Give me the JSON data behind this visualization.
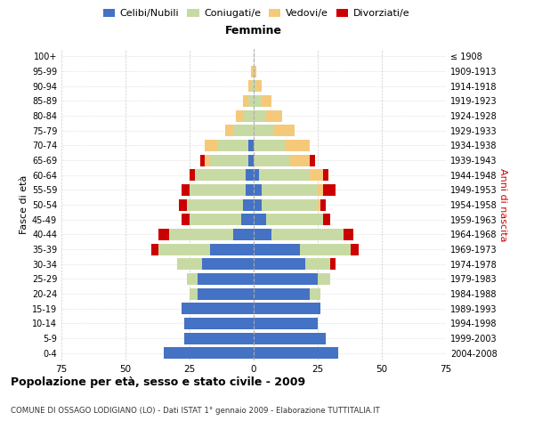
{
  "age_groups": [
    "0-4",
    "5-9",
    "10-14",
    "15-19",
    "20-24",
    "25-29",
    "30-34",
    "35-39",
    "40-44",
    "45-49",
    "50-54",
    "55-59",
    "60-64",
    "65-69",
    "70-74",
    "75-79",
    "80-84",
    "85-89",
    "90-94",
    "95-99",
    "100+"
  ],
  "birth_years": [
    "2004-2008",
    "1999-2003",
    "1994-1998",
    "1989-1993",
    "1984-1988",
    "1979-1983",
    "1974-1978",
    "1969-1973",
    "1964-1968",
    "1959-1963",
    "1954-1958",
    "1949-1953",
    "1944-1948",
    "1939-1943",
    "1934-1938",
    "1929-1933",
    "1924-1928",
    "1919-1923",
    "1914-1918",
    "1909-1913",
    "≤ 1908"
  ],
  "male": {
    "celibi": [
      35,
      27,
      27,
      28,
      22,
      22,
      20,
      17,
      8,
      5,
      4,
      3,
      3,
      2,
      2,
      0,
      0,
      0,
      0,
      0,
      0
    ],
    "coniugati": [
      0,
      0,
      0,
      0,
      3,
      4,
      10,
      20,
      25,
      20,
      22,
      22,
      20,
      15,
      12,
      8,
      4,
      2,
      1,
      0,
      0
    ],
    "vedovi": [
      0,
      0,
      0,
      0,
      0,
      0,
      0,
      0,
      0,
      0,
      0,
      0,
      0,
      2,
      5,
      3,
      3,
      2,
      1,
      1,
      0
    ],
    "divorziati": [
      0,
      0,
      0,
      0,
      0,
      0,
      0,
      3,
      4,
      3,
      3,
      3,
      2,
      2,
      0,
      0,
      0,
      0,
      0,
      0,
      0
    ]
  },
  "female": {
    "nubili": [
      33,
      28,
      25,
      26,
      22,
      25,
      20,
      18,
      7,
      5,
      3,
      3,
      2,
      0,
      0,
      0,
      0,
      0,
      0,
      0,
      0
    ],
    "coniugate": [
      0,
      0,
      0,
      0,
      4,
      5,
      10,
      20,
      28,
      22,
      22,
      22,
      20,
      14,
      12,
      8,
      5,
      3,
      1,
      0,
      0
    ],
    "vedove": [
      0,
      0,
      0,
      0,
      0,
      0,
      0,
      0,
      0,
      0,
      1,
      2,
      5,
      8,
      10,
      8,
      6,
      4,
      2,
      1,
      0
    ],
    "divorziate": [
      0,
      0,
      0,
      0,
      0,
      0,
      2,
      3,
      4,
      3,
      2,
      5,
      2,
      2,
      0,
      0,
      0,
      0,
      0,
      0,
      0
    ]
  },
  "colors": {
    "celibi": "#4472C4",
    "coniugati": "#c8daa4",
    "vedovi": "#f5c97a",
    "divorziati": "#cc0000"
  },
  "xlim": 75,
  "title": "Popolazione per età, sesso e stato civile - 2009",
  "subtitle": "COMUNE DI OSSAGO LODIGIANO (LO) - Dati ISTAT 1° gennaio 2009 - Elaborazione TUTTITALIA.IT",
  "ylabel_left": "Fasce di età",
  "ylabel_right": "Anni di nascita",
  "xlabel_right": "Femmine",
  "bg_color": "#ffffff",
  "grid_color": "#cccccc"
}
